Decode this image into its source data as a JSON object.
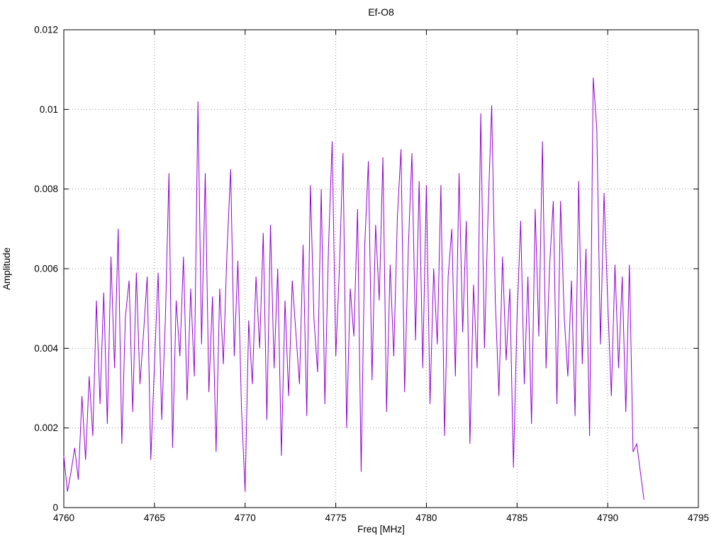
{
  "chart_data": {
    "type": "line",
    "title": "Ef-O8",
    "xlabel": "Freq [MHz]",
    "ylabel": "Amplitude",
    "xlim": [
      4760,
      4795
    ],
    "ylim": [
      0,
      0.012
    ],
    "x_ticks": [
      4760,
      4765,
      4770,
      4775,
      4780,
      4785,
      4790,
      4795
    ],
    "x_tick_labels": [
      "4760",
      "4765",
      "4770",
      "4775",
      "4780",
      "4785",
      "4790",
      "4795"
    ],
    "y_ticks": [
      0,
      0.002,
      0.004,
      0.006,
      0.008,
      0.01,
      0.012
    ],
    "y_tick_labels": [
      "0",
      "0.002",
      "0.004",
      "0.006",
      "0.008",
      "0.01",
      "0.012"
    ],
    "grid": true,
    "legend_position": "none",
    "line_color": "#9400d3",
    "x_start": 4760.0,
    "x_step": 0.2,
    "values": [
      0.0013,
      0.0004,
      0.0009,
      0.0015,
      0.0007,
      0.0028,
      0.0012,
      0.0033,
      0.0018,
      0.0052,
      0.0026,
      0.0054,
      0.0021,
      0.0063,
      0.0035,
      0.007,
      0.0016,
      0.0048,
      0.0057,
      0.0024,
      0.0059,
      0.0031,
      0.0044,
      0.0058,
      0.0012,
      0.0036,
      0.0059,
      0.0022,
      0.0047,
      0.0084,
      0.0015,
      0.0052,
      0.0038,
      0.0063,
      0.0027,
      0.0055,
      0.0033,
      0.0102,
      0.0041,
      0.0084,
      0.0029,
      0.0053,
      0.0014,
      0.0055,
      0.0036,
      0.0064,
      0.0085,
      0.0038,
      0.0062,
      0.0025,
      0.0004,
      0.0047,
      0.0031,
      0.0058,
      0.004,
      0.0069,
      0.0022,
      0.0071,
      0.0035,
      0.006,
      0.0013,
      0.0052,
      0.0028,
      0.0057,
      0.0044,
      0.0031,
      0.0066,
      0.0023,
      0.0081,
      0.0047,
      0.0034,
      0.008,
      0.0026,
      0.0065,
      0.0092,
      0.0038,
      0.006,
      0.0089,
      0.002,
      0.0055,
      0.0043,
      0.0075,
      0.0009,
      0.0066,
      0.0087,
      0.0032,
      0.0071,
      0.0052,
      0.0088,
      0.0024,
      0.0061,
      0.0038,
      0.0073,
      0.009,
      0.0029,
      0.0065,
      0.0089,
      0.0042,
      0.0082,
      0.0035,
      0.0081,
      0.0026,
      0.006,
      0.0041,
      0.0081,
      0.0018,
      0.0058,
      0.007,
      0.0033,
      0.0084,
      0.0044,
      0.0072,
      0.0016,
      0.0056,
      0.0035,
      0.0099,
      0.004,
      0.0074,
      0.0101,
      0.0052,
      0.0028,
      0.0063,
      0.0037,
      0.0055,
      0.001,
      0.0048,
      0.0072,
      0.0031,
      0.0058,
      0.0021,
      0.0075,
      0.0043,
      0.0092,
      0.0035,
      0.0061,
      0.0077,
      0.0026,
      0.0077,
      0.0048,
      0.0033,
      0.0057,
      0.0023,
      0.0082,
      0.0036,
      0.0065,
      0.0018,
      0.0108,
      0.0095,
      0.0041,
      0.0079,
      0.0052,
      0.0028,
      0.0061,
      0.0035,
      0.0058,
      0.0024,
      0.0061,
      0.0014,
      0.0016,
      0.0009,
      0.0002
    ]
  }
}
